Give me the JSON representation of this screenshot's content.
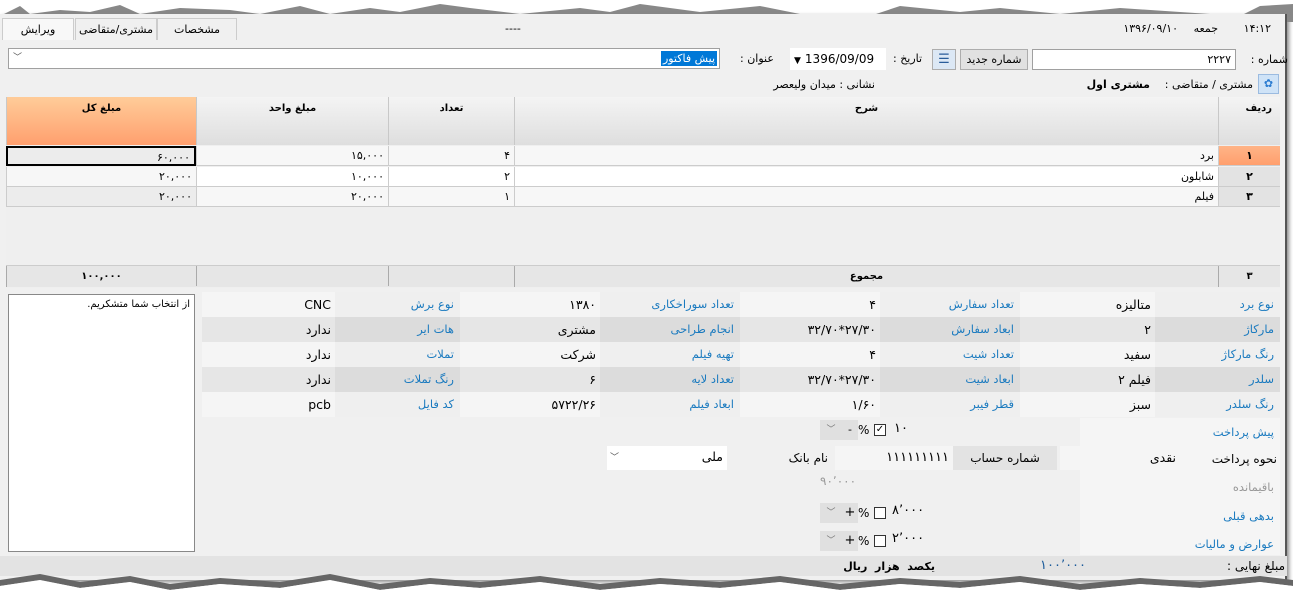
{
  "tabs": [
    {
      "label": "ویرایش",
      "active": true
    },
    {
      "label": "مشتری/متقاضی"
    },
    {
      "label": "مشخصات"
    }
  ],
  "tab_center": "----",
  "status": {
    "time": "۱۴:۱۲",
    "day": "جمعه",
    "date": "۱۳۹۶/۰۹/۱۰"
  },
  "header": {
    "number_label": "شماره :",
    "number_value": "۲۲۲۷",
    "new_number_button": "شماره جدید",
    "date_label": "تاریخ :",
    "date_value": "1396/09/09",
    "title_label": "عنوان :",
    "title_value": "پیش فاکتور",
    "customer_label": "مشتری / متقاضی :",
    "customer_value": "مشتری اول",
    "address": "نشانی : میدان ولیعصر"
  },
  "grid": {
    "columns": [
      "ردیف",
      "شرح",
      "تعداد",
      "مبلغ واحد",
      "مبلغ کل"
    ],
    "rows": [
      {
        "row": "۱",
        "desc": "برد",
        "qty": "۴",
        "unit": "۱۵,۰۰۰",
        "total": "۶۰,۰۰۰"
      },
      {
        "row": "۲",
        "desc": "شابلون",
        "qty": "۲",
        "unit": "۱۰,۰۰۰",
        "total": "۲۰,۰۰۰"
      },
      {
        "row": "۳",
        "desc": "فیلم",
        "qty": "۱",
        "unit": "۲۰,۰۰۰",
        "total": "۲۰,۰۰۰"
      }
    ],
    "footer": {
      "count": "۳",
      "label": "مجموع",
      "total": "۱۰۰,۰۰۰"
    }
  },
  "memo": "از انتخاب شما متشکریم.",
  "properties": [
    [
      {
        "l": "نوع برد",
        "v": "متالیزه"
      },
      {
        "l": "تعداد سفارش",
        "v": "۴"
      },
      {
        "l": "تعداد سوراخکاری",
        "v": "۱۳۸۰"
      },
      {
        "l": "نوع برش",
        "v": "CNC"
      }
    ],
    [
      {
        "l": "مارکاژ",
        "v": "۲"
      },
      {
        "l": "ابعاد سفارش",
        "v": "۲۷/۳۰*۳۲/۷۰"
      },
      {
        "l": "انجام طراحی",
        "v": "مشتری"
      },
      {
        "l": "هات ایر",
        "v": "ندارد"
      }
    ],
    [
      {
        "l": "رنگ مارکاژ",
        "v": "سفید"
      },
      {
        "l": "تعداد شیت",
        "v": "۴"
      },
      {
        "l": "تهیه فیلم",
        "v": "شرکت"
      },
      {
        "l": "تملات",
        "v": "ندارد"
      }
    ],
    [
      {
        "l": "سلدر",
        "v": "فیلم ۲"
      },
      {
        "l": "ابعاد شیت",
        "v": "۲۷/۳۰*۳۲/۷۰"
      },
      {
        "l": "تعداد لایه",
        "v": "۶"
      },
      {
        "l": "رنگ تملات",
        "v": "ندارد"
      }
    ],
    [
      {
        "l": "رنگ سلدر",
        "v": "سبز"
      },
      {
        "l": "قطر فیبر",
        "v": "۱/۶۰"
      },
      {
        "l": "ابعاد فیلم",
        "v": "۵۷۲۲/۲۶"
      },
      {
        "l": "کد فایل",
        "v": "pcb"
      }
    ]
  ],
  "payment": {
    "prepay_label": "پیش پرداخت",
    "prepay_value": "۱۰",
    "prepay_percent": true,
    "prepay_sign": "-",
    "method_label": "نحوه پرداخت",
    "method_value": "نقدی",
    "account_label": "شماره حساب",
    "account_value": "۱۱۱۱۱۱۱۱۱",
    "bank_label": "نام بانک",
    "bank_value": "ملی",
    "remain_label": "باقیمانده",
    "remain_value": "۹۰٬۰۰۰",
    "debt_label": "بدهی قبلی",
    "debt_value": "۸٬۰۰۰",
    "debt_percent": false,
    "debt_sign": "+",
    "tax_label": "عوارض و مالیات",
    "tax_value": "۲٬۰۰۰",
    "tax_percent": false,
    "tax_sign": "+",
    "percent_symbol": "%"
  },
  "final": {
    "label": "مبلغ نهایی :",
    "value": "۱۰۰٬۰۰۰",
    "words": "یکصد  هزار  ریال"
  },
  "colors": {
    "accent": "#ffa474",
    "link": "#1a7abf",
    "selection": "#0078d7"
  }
}
